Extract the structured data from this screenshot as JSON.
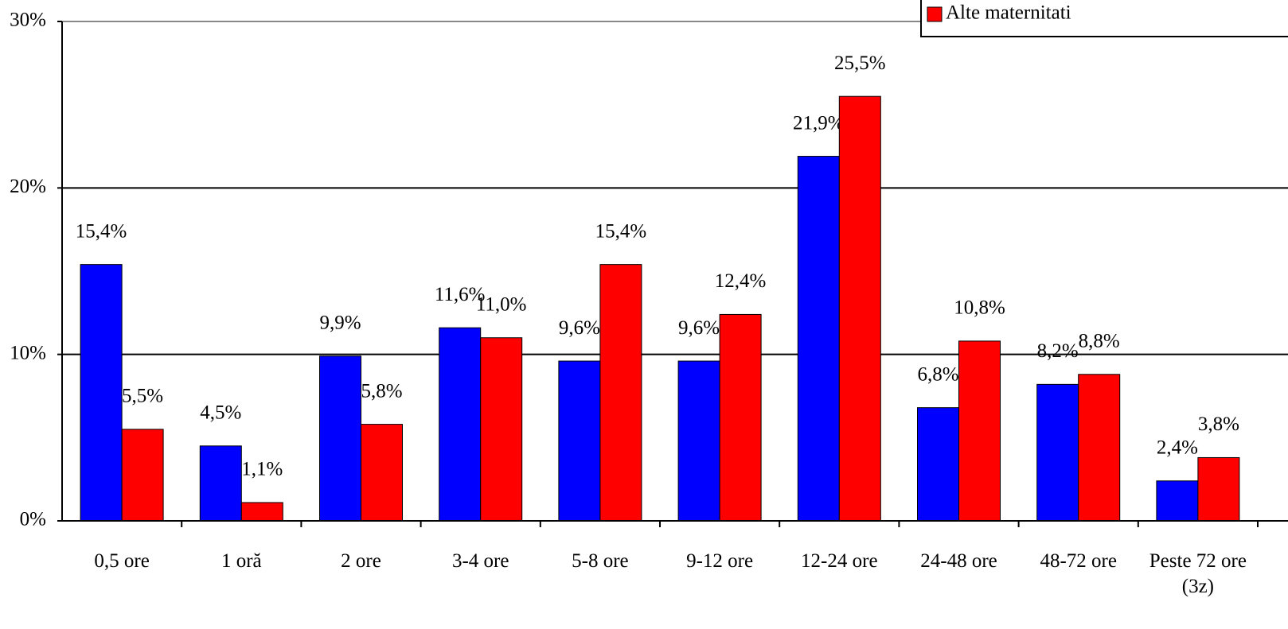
{
  "chart_data": {
    "type": "bar",
    "categories": [
      "0,5 ore",
      "1 oră",
      "2 ore",
      "3-4 ore",
      "5-8 ore",
      "9-12 ore",
      "12-24 ore",
      "24-48 ore",
      "48-72 ore",
      "Peste 72 ore (3z)"
    ],
    "series": [
      {
        "color": "#0000ff",
        "values": [
          15.4,
          4.5,
          9.9,
          11.6,
          9.6,
          9.6,
          21.9,
          6.8,
          8.2,
          2.4
        ],
        "value_labels": [
          "15,4%",
          "4,5%",
          "9,9%",
          "11,6%",
          "9,6%",
          "9,6%",
          "21,9%",
          "6,8%",
          "8,2%",
          "2,4%"
        ]
      },
      {
        "name": "Alte maternitati",
        "color": "#ff0000",
        "values": [
          5.5,
          1.1,
          5.8,
          11.0,
          15.4,
          12.4,
          25.5,
          10.8,
          8.8,
          3.8
        ],
        "value_labels": [
          "5,5%",
          "1,1%",
          "5,8%",
          "11,0%",
          "15,4%",
          "12,4%",
          "25,5%",
          "10,8%",
          "8,8%",
          "3,8%"
        ]
      }
    ],
    "ylim": [
      0,
      30
    ],
    "yticks": [
      {
        "value": 0,
        "label": "0%"
      },
      {
        "value": 10,
        "label": "10%"
      },
      {
        "value": 20,
        "label": "20%"
      },
      {
        "value": 30,
        "label": "30%"
      }
    ],
    "grid": true
  }
}
